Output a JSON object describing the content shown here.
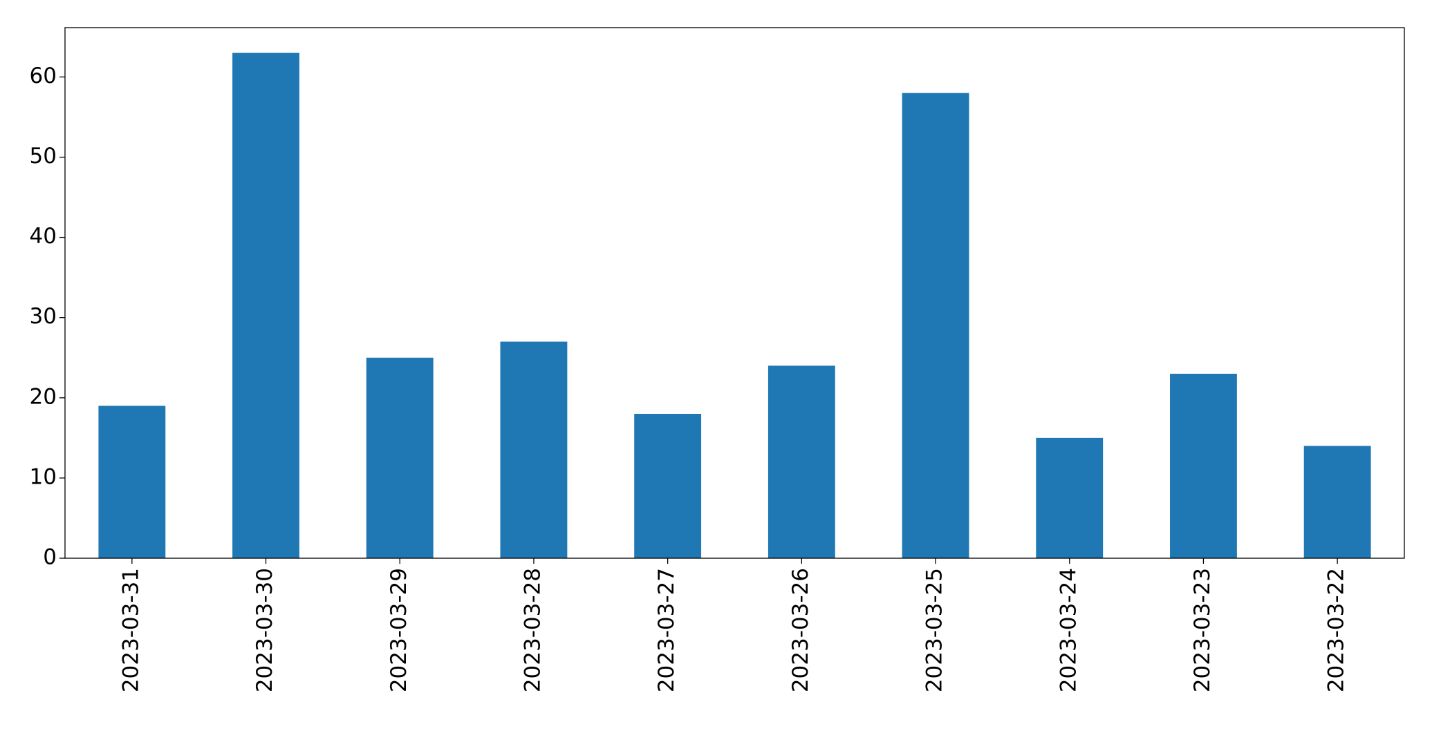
{
  "chart_data": {
    "type": "bar",
    "categories": [
      "2023-03-31",
      "2023-03-30",
      "2023-03-29",
      "2023-03-28",
      "2023-03-27",
      "2023-03-26",
      "2023-03-25",
      "2023-03-24",
      "2023-03-23",
      "2023-03-22"
    ],
    "values": [
      19,
      63,
      25,
      27,
      18,
      24,
      58,
      15,
      23,
      14
    ],
    "color": "#1f77b4",
    "ylim": [
      0,
      66.15
    ],
    "yticks": [
      0,
      10,
      20,
      30,
      40,
      50,
      60
    ],
    "grid": false
  }
}
